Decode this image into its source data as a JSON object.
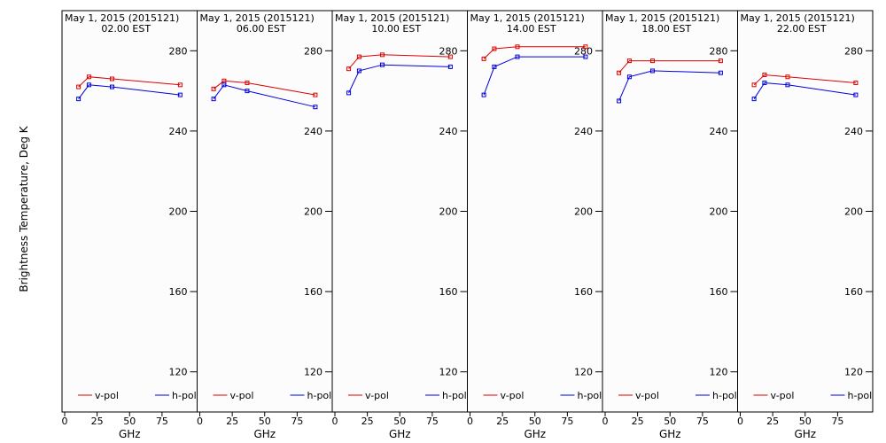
{
  "ylabel": "Brightness Temperature, Deg K",
  "colors": {
    "v-pol": "#dd0000",
    "h-pol": "#0000dd",
    "frame": "#000000",
    "background": "#fcfcfc"
  },
  "chart_data": [
    {
      "type": "line",
      "title": "May  1, 2015 (2015121)",
      "subtitle": "02.00 EST",
      "xlabel": "GHz",
      "ylabel": "Brightness Temperature, Deg K",
      "xlim": [
        0,
        100
      ],
      "ylim": [
        100,
        300
      ],
      "x_ticks": [
        0,
        25,
        50,
        75
      ],
      "y_ticks": [
        120,
        160,
        200,
        240,
        280
      ],
      "legend": "bottom",
      "grid": false,
      "series": [
        {
          "name": "v-pol",
          "x": [
            10.65,
            18.7,
            36.5,
            89.0
          ],
          "y": [
            262,
            267,
            266,
            263
          ]
        },
        {
          "name": "h-pol",
          "x": [
            10.65,
            18.7,
            36.5,
            89.0
          ],
          "y": [
            256,
            263,
            262,
            258
          ]
        }
      ]
    },
    {
      "type": "line",
      "title": "May  1, 2015 (2015121)",
      "subtitle": "06.00 EST",
      "xlabel": "GHz",
      "ylabel": "",
      "xlim": [
        0,
        100
      ],
      "ylim": [
        100,
        300
      ],
      "x_ticks": [
        0,
        25,
        50,
        75
      ],
      "y_ticks": [
        120,
        160,
        200,
        240,
        280
      ],
      "legend": "bottom",
      "grid": false,
      "series": [
        {
          "name": "v-pol",
          "x": [
            10.65,
            18.7,
            36.5,
            89.0
          ],
          "y": [
            261,
            265,
            264,
            258
          ]
        },
        {
          "name": "h-pol",
          "x": [
            10.65,
            18.7,
            36.5,
            89.0
          ],
          "y": [
            256,
            263,
            260,
            252
          ]
        }
      ]
    },
    {
      "type": "line",
      "title": "May  1, 2015 (2015121)",
      "subtitle": "10.00 EST",
      "xlabel": "GHz",
      "ylabel": "",
      "xlim": [
        0,
        100
      ],
      "ylim": [
        100,
        300
      ],
      "x_ticks": [
        0,
        25,
        50,
        75
      ],
      "y_ticks": [
        120,
        160,
        200,
        240,
        280
      ],
      "legend": "bottom",
      "grid": false,
      "series": [
        {
          "name": "v-pol",
          "x": [
            10.65,
            18.7,
            36.5,
            89.0
          ],
          "y": [
            271,
            277,
            278,
            277
          ]
        },
        {
          "name": "h-pol",
          "x": [
            10.65,
            18.7,
            36.5,
            89.0
          ],
          "y": [
            259,
            270,
            273,
            272
          ]
        }
      ]
    },
    {
      "type": "line",
      "title": "May  1, 2015 (2015121)",
      "subtitle": "14.00 EST",
      "xlabel": "GHz",
      "ylabel": "",
      "xlim": [
        0,
        100
      ],
      "ylim": [
        100,
        300
      ],
      "x_ticks": [
        0,
        25,
        50,
        75
      ],
      "y_ticks": [
        120,
        160,
        200,
        240,
        280
      ],
      "legend": "bottom",
      "grid": false,
      "series": [
        {
          "name": "v-pol",
          "x": [
            10.65,
            18.7,
            36.5,
            89.0
          ],
          "y": [
            276,
            281,
            282,
            282
          ]
        },
        {
          "name": "h-pol",
          "x": [
            10.65,
            18.7,
            36.5,
            89.0
          ],
          "y": [
            258,
            272,
            277,
            277
          ]
        }
      ]
    },
    {
      "type": "line",
      "title": "May  1, 2015 (2015121)",
      "subtitle": "18.00 EST",
      "xlabel": "GHz",
      "ylabel": "",
      "xlim": [
        0,
        100
      ],
      "ylim": [
        100,
        300
      ],
      "x_ticks": [
        0,
        25,
        50,
        75
      ],
      "y_ticks": [
        120,
        160,
        200,
        240,
        280
      ],
      "legend": "bottom",
      "grid": false,
      "series": [
        {
          "name": "v-pol",
          "x": [
            10.65,
            18.7,
            36.5,
            89.0
          ],
          "y": [
            269,
            275,
            275,
            275
          ]
        },
        {
          "name": "h-pol",
          "x": [
            10.65,
            18.7,
            36.5,
            89.0
          ],
          "y": [
            255,
            267,
            270,
            269
          ]
        }
      ]
    },
    {
      "type": "line",
      "title": "May  1, 2015 (2015121)",
      "subtitle": "22.00 EST",
      "xlabel": "GHz",
      "ylabel": "",
      "xlim": [
        0,
        100
      ],
      "ylim": [
        100,
        300
      ],
      "x_ticks": [
        0,
        25,
        50,
        75
      ],
      "y_ticks": [
        120,
        160,
        200,
        240,
        280
      ],
      "legend": "bottom",
      "grid": false,
      "series": [
        {
          "name": "v-pol",
          "x": [
            10.65,
            18.7,
            36.5,
            89.0
          ],
          "y": [
            263,
            268,
            267,
            264
          ]
        },
        {
          "name": "h-pol",
          "x": [
            10.65,
            18.7,
            36.5,
            89.0
          ],
          "y": [
            256,
            264,
            263,
            258
          ]
        }
      ]
    }
  ]
}
